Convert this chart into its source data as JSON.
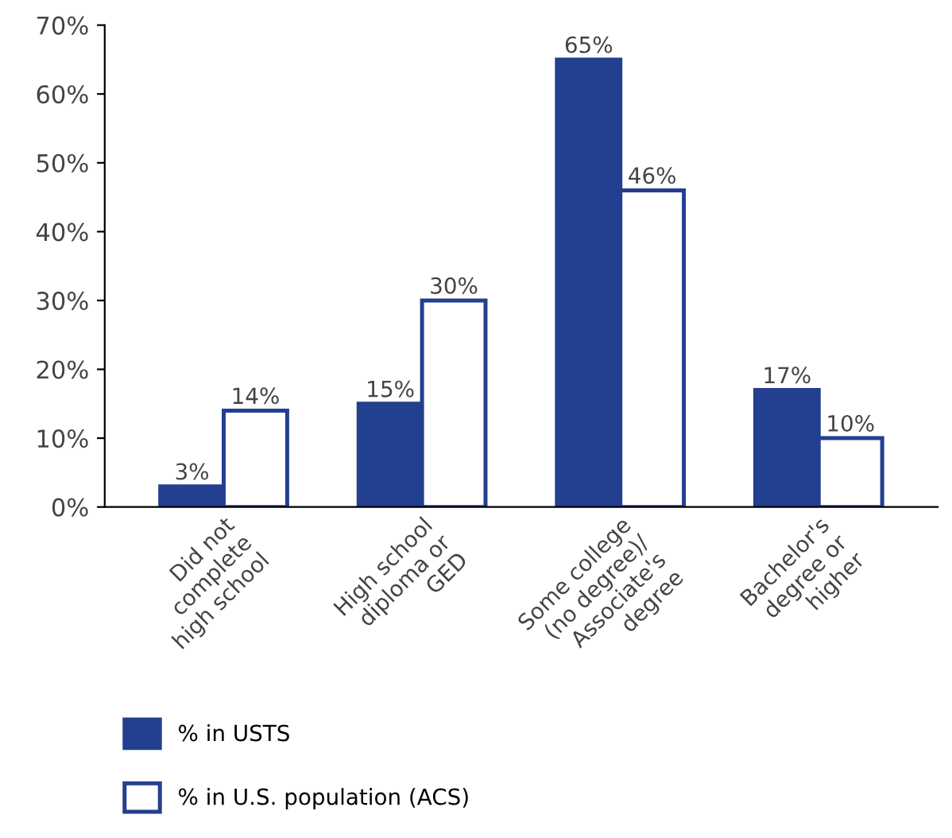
{
  "chart_data": {
    "type": "bar",
    "categories": [
      "Did not\ncomplete\nhigh school",
      "High school\ndiploma or\nGED",
      "Some college\n(no degree)/\nAssociate's\ndegree",
      "Bachelor's\ndegree or\nhigher"
    ],
    "series": [
      {
        "name": "% in USTS",
        "color": "#233f8f",
        "values": [
          3,
          15,
          65,
          17
        ],
        "value_labels": [
          "3%",
          "15%",
          "65%",
          "17%"
        ]
      },
      {
        "name": "% in U.S. population (ACS)",
        "color": "#ffffff",
        "values": [
          14,
          30,
          46,
          10
        ],
        "value_labels": [
          "14%",
          "30%",
          "46%",
          "10%"
        ]
      }
    ],
    "ylim": [
      0,
      70
    ],
    "yticks": [
      {
        "value": 0,
        "label": "0%"
      },
      {
        "value": 10,
        "label": "10%"
      },
      {
        "value": 20,
        "label": "20%"
      },
      {
        "value": 30,
        "label": "30%"
      },
      {
        "value": 40,
        "label": "40%"
      },
      {
        "value": 50,
        "label": "50%"
      },
      {
        "value": 60,
        "label": "60%"
      },
      {
        "value": 70,
        "label": "70%"
      }
    ],
    "grid": false,
    "legend": "bottom"
  }
}
